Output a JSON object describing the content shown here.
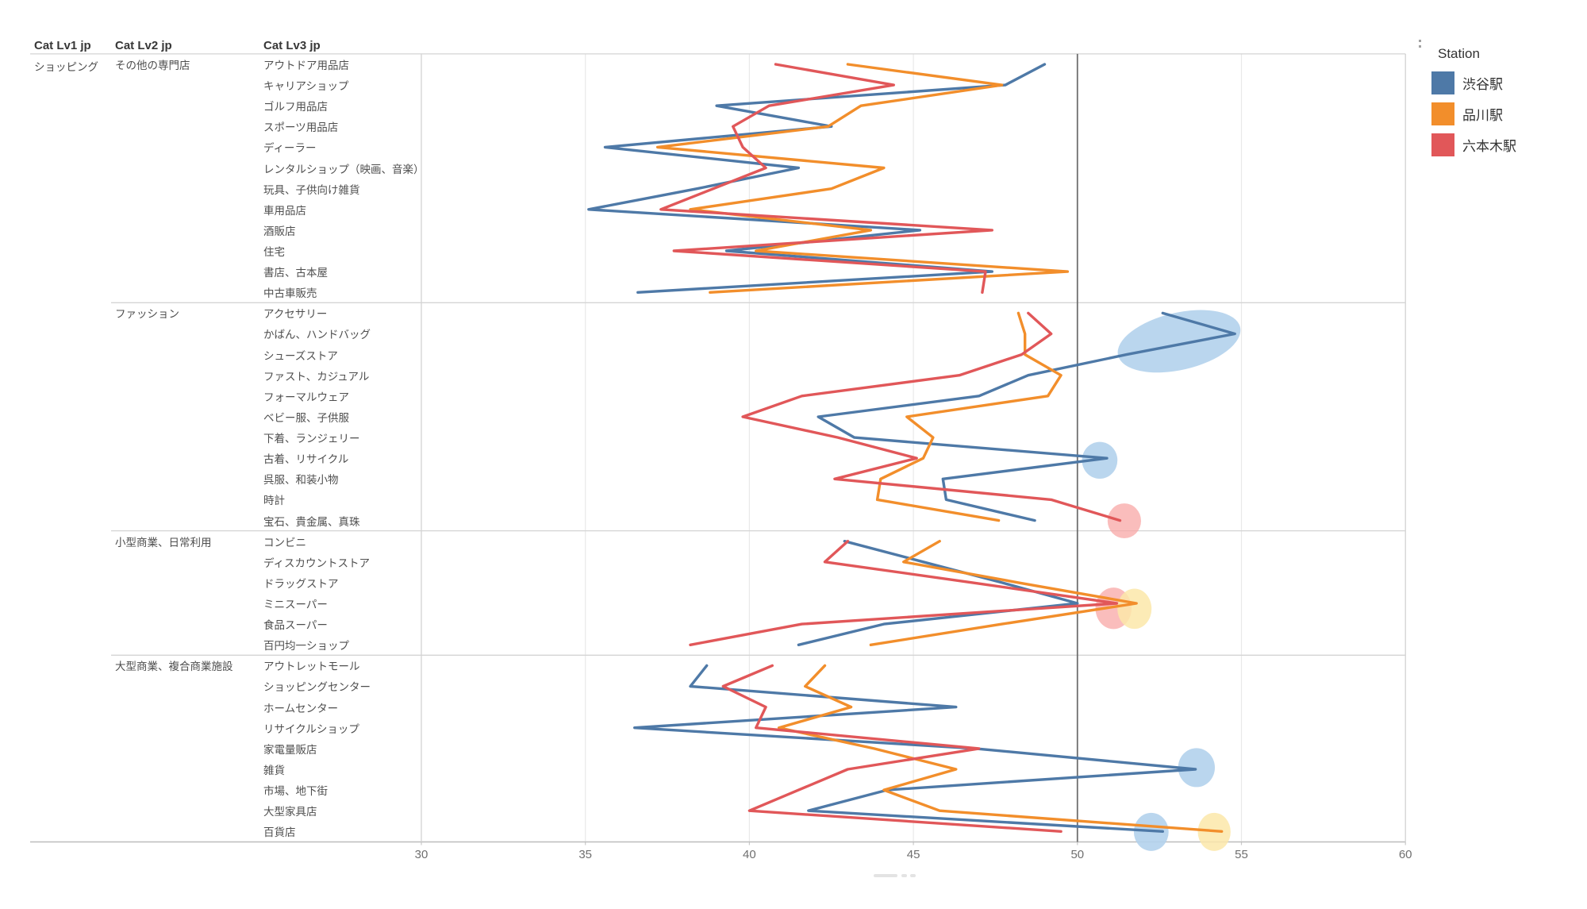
{
  "columns": [
    "Cat Lv1 jp",
    "Cat Lv2 jp",
    "Cat Lv3 jp"
  ],
  "cat_lv1": "ショッピング",
  "legend": {
    "title": "Station",
    "series": [
      {
        "name": "渋谷駅",
        "color": "#4e79a7"
      },
      {
        "name": "品川駅",
        "color": "#f28e2b"
      },
      {
        "name": "六本木駅",
        "color": "#e15759"
      }
    ]
  },
  "chart_data": {
    "type": "line",
    "orientation": "horizontal",
    "title": "",
    "xlabel": "",
    "ylabel": "",
    "xlim": [
      30,
      60
    ],
    "x_ticks": [
      30,
      35,
      40,
      45,
      50,
      55,
      60
    ],
    "reference_line_x": 50,
    "grid": "vertical-light",
    "legend_position": "top-right",
    "series_names": [
      "渋谷駅",
      "品川駅",
      "六本木駅"
    ],
    "series_colors": [
      "#4e79a7",
      "#f28e2b",
      "#e15759"
    ],
    "groups": [
      {
        "cat_lv2": "その他の専門店",
        "rows": [
          {
            "label": "アウトドア用品店",
            "values": [
              49.0,
              43.0,
              40.8
            ]
          },
          {
            "label": "キャリアショップ",
            "values": [
              47.8,
              47.7,
              44.4
            ]
          },
          {
            "label": "ゴルフ用品店",
            "values": [
              39.0,
              43.4,
              40.6
            ]
          },
          {
            "label": "スポーツ用品店",
            "values": [
              42.5,
              42.4,
              39.5
            ]
          },
          {
            "label": "ディーラー",
            "values": [
              35.6,
              37.2,
              39.8
            ]
          },
          {
            "label": "レンタルショップ（映画、音楽）",
            "values": [
              41.5,
              44.1,
              40.5
            ]
          },
          {
            "label": "玩具、子供向け雑貨",
            "values": [
              38.4,
              42.5,
              38.9
            ]
          },
          {
            "label": "車用品店",
            "values": [
              35.1,
              38.2,
              37.3
            ]
          },
          {
            "label": "酒販店",
            "values": [
              45.2,
              43.7,
              47.4
            ]
          },
          {
            "label": "住宅",
            "values": [
              39.3,
              40.2,
              37.7
            ]
          },
          {
            "label": "書店、古本屋",
            "values": [
              47.4,
              49.7,
              47.2
            ]
          },
          {
            "label": "中古車販売",
            "values": [
              36.6,
              38.8,
              47.1
            ]
          }
        ]
      },
      {
        "cat_lv2": "ファッション",
        "rows": [
          {
            "label": "アクセサリー",
            "values": [
              52.6,
              48.2,
              48.5
            ]
          },
          {
            "label": "かばん、ハンドバッグ",
            "values": [
              54.8,
              48.4,
              49.2
            ]
          },
          {
            "label": "シューズストア",
            "values": [
              51.5,
              48.4,
              48.3
            ]
          },
          {
            "label": "ファスト、カジュアル",
            "values": [
              48.5,
              49.5,
              46.4
            ]
          },
          {
            "label": "フォーマルウェア",
            "values": [
              47.0,
              49.1,
              41.6
            ]
          },
          {
            "label": "ベビー服、子供服",
            "values": [
              42.1,
              44.8,
              39.8
            ]
          },
          {
            "label": "下着、ランジェリー",
            "values": [
              43.2,
              45.6,
              42.7
            ]
          },
          {
            "label": "古着、リサイクル",
            "values": [
              50.9,
              45.3,
              45.1
            ]
          },
          {
            "label": "呉服、和装小物",
            "values": [
              45.9,
              44.0,
              42.6
            ]
          },
          {
            "label": "時計",
            "values": [
              46.0,
              43.9,
              49.2
            ]
          },
          {
            "label": "宝石、貴金属、真珠",
            "values": [
              48.7,
              47.6,
              51.3
            ]
          }
        ]
      },
      {
        "cat_lv2": "小型商業、日常利用",
        "rows": [
          {
            "label": "コンビニ",
            "values": [
              42.9,
              45.8,
              43.0
            ]
          },
          {
            "label": "ディスカウントストア",
            "values": [
              45.3,
              44.7,
              42.3
            ]
          },
          {
            "label": "ドラッグストア",
            "values": [
              47.7,
              48.2,
              46.8
            ]
          },
          {
            "label": "ミニスーパー",
            "values": [
              50.0,
              51.8,
              51.2
            ]
          },
          {
            "label": "食品スーパー",
            "values": [
              44.1,
              47.7,
              41.6
            ]
          },
          {
            "label": "百円均一ショップ",
            "values": [
              41.5,
              43.7,
              38.2
            ]
          }
        ]
      },
      {
        "cat_lv2": "大型商業、複合商業施設",
        "rows": [
          {
            "label": "アウトレットモール",
            "values": [
              38.7,
              42.3,
              40.7
            ]
          },
          {
            "label": "ショッピングセンター",
            "values": [
              38.2,
              41.7,
              39.2
            ]
          },
          {
            "label": "ホームセンター",
            "values": [
              46.3,
              43.1,
              40.5
            ]
          },
          {
            "label": "リサイクルショップ",
            "values": [
              36.5,
              40.9,
              40.2
            ]
          },
          {
            "label": "家電量販店",
            "values": [
              46.9,
              43.8,
              47.0
            ]
          },
          {
            "label": "雑貨",
            "values": [
              53.6,
              46.3,
              43.0
            ]
          },
          {
            "label": "市場、地下街",
            "values": [
              44.2,
              44.1,
              41.5
            ]
          },
          {
            "label": "大型家具店",
            "values": [
              41.8,
              45.8,
              40.0
            ]
          },
          {
            "label": "百貨店",
            "values": [
              52.6,
              54.4,
              49.5
            ]
          }
        ]
      }
    ],
    "highlights": [
      {
        "shape": "ellipse",
        "color": "#b3d1ec",
        "opacity": 0.9,
        "x_value": 53.1,
        "row_pos": 13.36,
        "rx_units": 1.91,
        "ry_rows": 1.38,
        "rotate_deg": -13
      },
      {
        "shape": "circle",
        "color": "#b3d1ec",
        "opacity": 0.9,
        "x_value": 50.68,
        "row_pos": 19.1,
        "rx_units": 0.54,
        "ry_rows": 0.89,
        "rotate_deg": 0
      },
      {
        "shape": "circle",
        "color": "#f8a7a6",
        "opacity": 0.75,
        "x_value": 51.43,
        "row_pos": 22.02,
        "rx_units": 0.51,
        "ry_rows": 0.84,
        "rotate_deg": 0
      },
      {
        "shape": "circle",
        "color": "#f8a7a6",
        "opacity": 0.75,
        "x_value": 51.1,
        "row_pos": 26.24,
        "rx_units": 0.55,
        "ry_rows": 1.0,
        "rotate_deg": 0
      },
      {
        "shape": "circle",
        "color": "#fbe7a9",
        "opacity": 0.85,
        "x_value": 51.74,
        "row_pos": 26.26,
        "rx_units": 0.52,
        "ry_rows": 0.97,
        "rotate_deg": 0
      },
      {
        "shape": "circle",
        "color": "#b3d1ec",
        "opacity": 0.9,
        "x_value": 53.63,
        "row_pos": 33.92,
        "rx_units": 0.56,
        "ry_rows": 0.94,
        "rotate_deg": 0
      },
      {
        "shape": "circle",
        "color": "#b3d1ec",
        "opacity": 0.9,
        "x_value": 52.25,
        "row_pos": 37.02,
        "rx_units": 0.53,
        "ry_rows": 0.92,
        "rotate_deg": 0
      },
      {
        "shape": "circle",
        "color": "#fbe7a9",
        "opacity": 0.85,
        "x_value": 54.17,
        "row_pos": 37.02,
        "rx_units": 0.5,
        "ry_rows": 0.92,
        "rotate_deg": 0
      }
    ]
  }
}
